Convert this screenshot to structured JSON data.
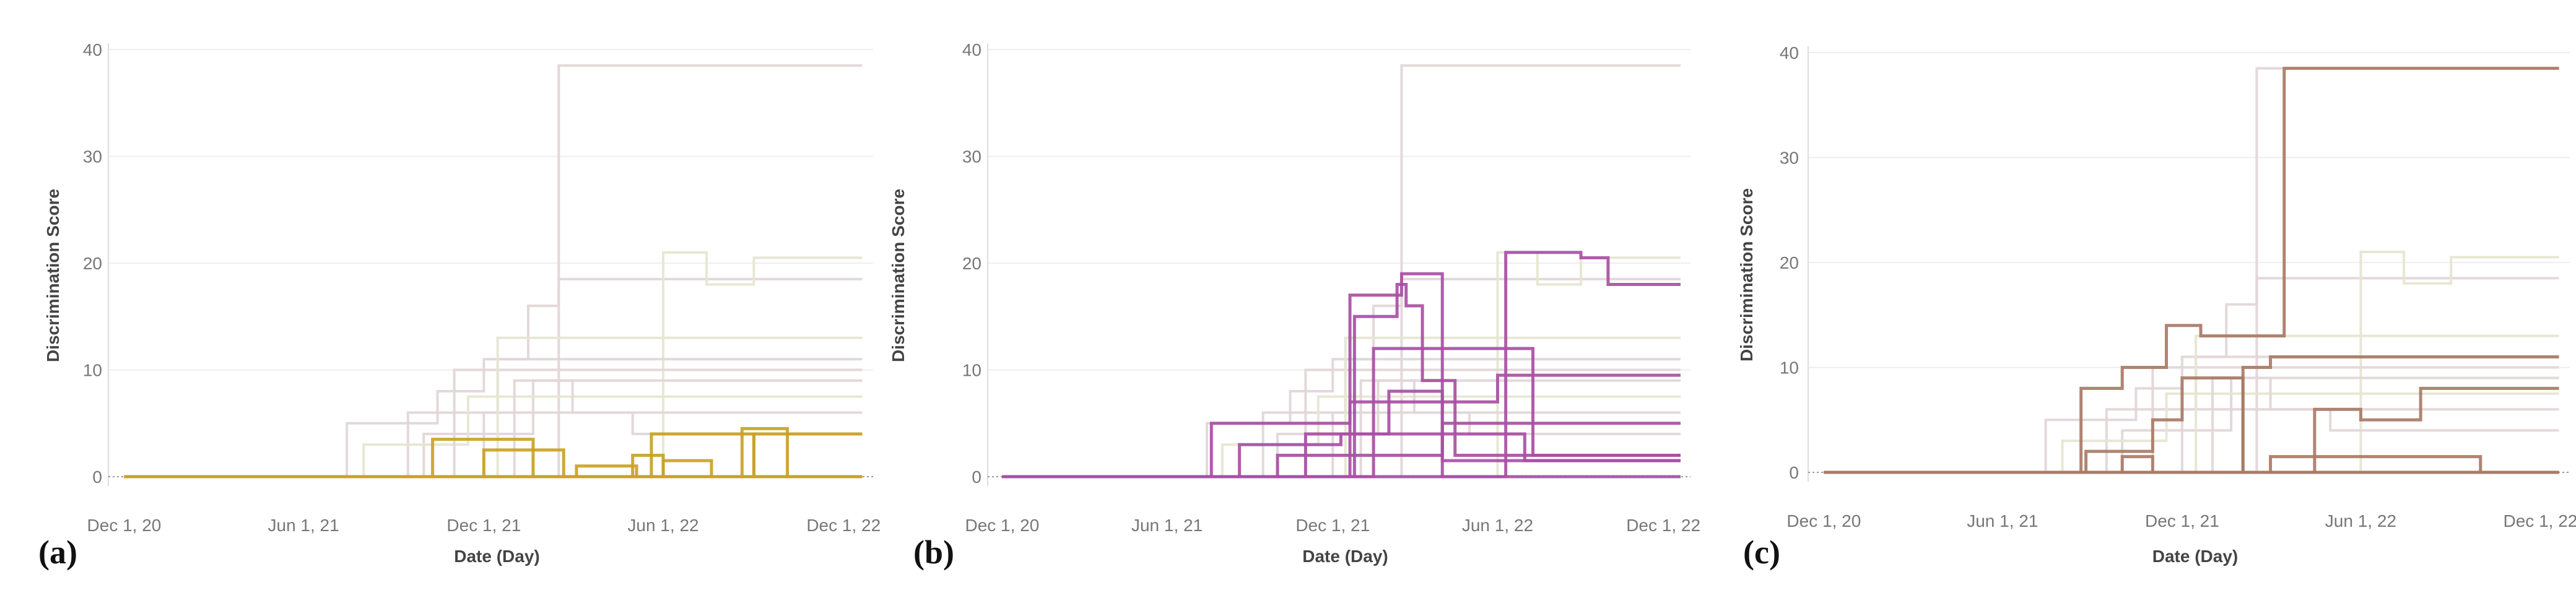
{
  "colors": {
    "muted": "#e2d6d8",
    "muted_alt": "#e6e6d2",
    "highlight_a": "#c9a227",
    "highlight_b": "#a94fa4",
    "highlight_c": "#a87b66"
  },
  "chart_data": [
    {
      "type": "line",
      "step": true,
      "panel_label": "(a)",
      "xlabel": "Date (Day)",
      "ylabel": "Discrimination Score",
      "xlim": [
        "2020-11-15",
        "2022-12-31"
      ],
      "ylim": [
        0,
        40
      ],
      "xticks": [
        "2020-12-01",
        "2021-06-01",
        "2021-12-01",
        "2022-06-01",
        "2022-12-01"
      ],
      "xtick_labels": [
        "Dec 1, 20",
        "Jun 1, 21",
        "Dec 1, 21",
        "Jun 1, 22",
        "Dec 1, 22"
      ],
      "yticks": [
        0,
        10,
        20,
        30,
        40
      ],
      "grid": true,
      "highlight_color": "#c9a227",
      "highlighted_series": [
        {
          "x": [
            "2020-12-01",
            "2021-10-01",
            "2021-10-10",
            "2022-01-20",
            "2022-01-20",
            "2022-12-20"
          ],
          "y": [
            0,
            0,
            3.5,
            3.5,
            0,
            0
          ]
        },
        {
          "x": [
            "2020-12-01",
            "2021-12-01",
            "2021-12-01",
            "2022-02-20",
            "2022-02-20",
            "2022-12-20"
          ],
          "y": [
            0,
            0,
            2.5,
            2.5,
            0,
            0
          ]
        },
        {
          "x": [
            "2020-12-01",
            "2022-01-20",
            "2022-03-05",
            "2022-03-05",
            "2022-05-05",
            "2022-05-05",
            "2022-12-20"
          ],
          "y": [
            0,
            0,
            1,
            1,
            0,
            0,
            0
          ]
        },
        {
          "x": [
            "2020-12-01",
            "2022-05-01",
            "2022-05-01",
            "2022-06-01",
            "2022-06-01",
            "2022-12-20"
          ],
          "y": [
            0,
            0,
            2,
            2,
            0,
            0
          ]
        },
        {
          "x": [
            "2020-12-01",
            "2022-05-20",
            "2022-05-20",
            "2022-09-01",
            "2022-09-01",
            "2022-12-20"
          ],
          "y": [
            0,
            0,
            4,
            4,
            0,
            0
          ]
        },
        {
          "x": [
            "2020-12-01",
            "2022-08-20",
            "2022-08-20",
            "2022-10-05",
            "2022-10-05",
            "2022-12-20"
          ],
          "y": [
            0,
            0,
            4.5,
            4.5,
            0,
            0
          ]
        },
        {
          "x": [
            "2020-12-01",
            "2022-09-01",
            "2022-09-01",
            "2022-12-20"
          ],
          "y": [
            0,
            0,
            4,
            4
          ]
        },
        {
          "x": [
            "2020-12-01",
            "2022-06-01",
            "2022-06-01",
            "2022-07-20",
            "2022-07-20",
            "2022-12-20"
          ],
          "y": [
            0,
            0,
            1.5,
            1.5,
            0,
            0
          ]
        }
      ]
    },
    {
      "type": "line",
      "step": true,
      "panel_label": "(b)",
      "xlabel": "Date (Day)",
      "ylabel": "Discrimination Score",
      "xlim": [
        "2020-11-15",
        "2022-12-31"
      ],
      "ylim": [
        0,
        40
      ],
      "xticks": [
        "2020-12-01",
        "2021-06-01",
        "2021-12-01",
        "2022-06-01",
        "2022-12-01"
      ],
      "xtick_labels": [
        "Dec 1, 20",
        "Jun 1, 21",
        "Dec 1, 21",
        "Jun 1, 22",
        "Dec 1, 22"
      ],
      "yticks": [
        0,
        10,
        20,
        30,
        40
      ],
      "grid": true,
      "highlight_color": "#a94fa4",
      "highlighted_series": [
        {
          "x": [
            "2020-12-01",
            "2021-07-20",
            "2021-07-20",
            "2021-12-20",
            "2021-12-20",
            "2022-06-01",
            "2022-06-01",
            "2022-12-20"
          ],
          "y": [
            0,
            0,
            5,
            5,
            7,
            7,
            9.5,
            9.5
          ]
        },
        {
          "x": [
            "2020-12-01",
            "2021-08-20",
            "2021-08-20",
            "2021-12-10",
            "2021-12-10",
            "2022-02-01",
            "2022-02-01",
            "2022-04-01",
            "2022-04-01",
            "2022-12-20"
          ],
          "y": [
            0,
            0,
            3,
            3,
            4,
            4,
            8,
            8,
            1.5,
            1.5
          ]
        },
        {
          "x": [
            "2020-12-01",
            "2021-12-20",
            "2021-12-20",
            "2022-02-15",
            "2022-02-15",
            "2022-04-01",
            "2022-04-01",
            "2022-12-20"
          ],
          "y": [
            0,
            0,
            17,
            17,
            19,
            19,
            0,
            0
          ]
        },
        {
          "x": [
            "2020-12-01",
            "2021-12-25",
            "2021-12-25",
            "2022-02-10",
            "2022-02-10",
            "2022-02-20",
            "2022-02-20",
            "2022-03-10",
            "2022-03-10",
            "2022-04-15",
            "2022-04-15",
            "2022-12-20"
          ],
          "y": [
            0,
            0,
            15,
            15,
            18,
            18,
            16,
            16,
            9,
            9,
            2,
            2
          ]
        },
        {
          "x": [
            "2020-12-01",
            "2022-06-10",
            "2022-06-10",
            "2022-09-01",
            "2022-09-01",
            "2022-10-01",
            "2022-10-01",
            "2022-12-20"
          ],
          "y": [
            0,
            0,
            21,
            21,
            20.5,
            20.5,
            18,
            18
          ]
        },
        {
          "x": [
            "2020-12-01",
            "2021-10-01",
            "2021-10-01",
            "2022-04-01",
            "2022-04-01",
            "2022-12-20"
          ],
          "y": [
            0,
            0,
            2,
            2,
            5,
            5
          ]
        },
        {
          "x": [
            "2020-12-01",
            "2021-11-01",
            "2021-11-01",
            "2022-07-01",
            "2022-07-01",
            "2022-12-20"
          ],
          "y": [
            0,
            0,
            4,
            4,
            1.5,
            1.5
          ]
        },
        {
          "x": [
            "2020-12-01",
            "2022-01-15",
            "2022-01-15",
            "2022-07-10",
            "2022-07-10",
            "2022-12-20"
          ],
          "y": [
            0,
            0,
            12,
            12,
            2,
            2
          ]
        }
      ]
    },
    {
      "type": "line",
      "step": true,
      "panel_label": "(c)",
      "xlabel": "Date (Day)",
      "ylabel": "Discrimination Score",
      "xlim": [
        "2020-11-15",
        "2022-12-31"
      ],
      "ylim": [
        0,
        40
      ],
      "xticks": [
        "2020-12-01",
        "2021-06-01",
        "2021-12-01",
        "2022-06-01",
        "2022-12-01"
      ],
      "xtick_labels": [
        "Dec 1, 20",
        "Jun 1, 21",
        "Dec 1, 21",
        "Jun 1, 22",
        "Dec 1, 22"
      ],
      "yticks": [
        0,
        10,
        20,
        30,
        40
      ],
      "grid": true,
      "highlight_color": "#a87b66",
      "highlighted_series": [
        {
          "x": [
            "2020-12-01",
            "2021-08-20",
            "2021-08-20",
            "2021-10-01",
            "2021-10-01",
            "2021-11-15",
            "2021-11-15",
            "2021-12-20",
            "2021-12-20",
            "2022-03-15",
            "2022-03-15",
            "2022-12-20"
          ],
          "y": [
            0,
            0,
            8,
            8,
            10,
            10,
            14,
            14,
            13,
            13,
            38.5,
            38.5
          ]
        },
        {
          "x": [
            "2020-12-01",
            "2021-08-25",
            "2021-08-25",
            "2021-11-01",
            "2021-11-01",
            "2021-12-01",
            "2021-12-01",
            "2022-02-01",
            "2022-02-01",
            "2022-12-20"
          ],
          "y": [
            0,
            0,
            2,
            2,
            5,
            5,
            9,
            9,
            0,
            0
          ]
        },
        {
          "x": [
            "2020-12-01",
            "2022-02-01",
            "2022-02-01",
            "2022-03-01",
            "2022-03-01",
            "2022-12-20"
          ],
          "y": [
            0,
            0,
            10,
            10,
            11,
            11
          ]
        },
        {
          "x": [
            "2020-12-01",
            "2022-04-15",
            "2022-04-15",
            "2022-06-01",
            "2022-06-01",
            "2022-08-01",
            "2022-08-01",
            "2022-12-20"
          ],
          "y": [
            0,
            0,
            6,
            6,
            5,
            5,
            8,
            8
          ]
        },
        {
          "x": [
            "2020-12-01",
            "2021-10-01",
            "2021-10-01",
            "2021-11-01",
            "2021-11-01",
            "2022-12-20"
          ],
          "y": [
            0,
            0,
            1.5,
            1.5,
            0,
            0
          ]
        },
        {
          "x": [
            "2020-12-01",
            "2022-03-01",
            "2022-03-01",
            "2022-10-01",
            "2022-10-01",
            "2022-12-20"
          ],
          "y": [
            0,
            0,
            1.5,
            1.5,
            0,
            0
          ]
        }
      ]
    }
  ],
  "background_series": [
    {
      "x": [
        "2020-12-01",
        "2022-02-15",
        "2022-02-15",
        "2022-12-20"
      ],
      "y": [
        0,
        0,
        38.5,
        38.5
      ]
    },
    {
      "x": [
        "2020-12-01",
        "2021-07-15",
        "2021-07-15",
        "2021-10-15",
        "2021-10-15",
        "2021-12-01",
        "2021-12-01",
        "2022-01-15",
        "2022-01-15",
        "2022-02-15",
        "2022-02-15",
        "2022-12-20"
      ],
      "y": [
        0,
        0,
        5,
        5,
        8,
        8,
        11,
        11,
        16,
        16,
        18.5,
        18.5
      ]
    },
    {
      "x": [
        "2020-12-01",
        "2022-06-01",
        "2022-06-01",
        "2022-07-15",
        "2022-07-15",
        "2022-09-01",
        "2022-09-01",
        "2022-12-20"
      ],
      "y": [
        0,
        0,
        21,
        21,
        18,
        18,
        20.5,
        20.5
      ]
    },
    {
      "x": [
        "2020-12-01",
        "2021-09-15",
        "2021-09-15",
        "2021-12-15",
        "2021-12-15",
        "2022-12-20"
      ],
      "y": [
        0,
        0,
        6,
        6,
        11,
        11
      ]
    },
    {
      "x": [
        "2020-12-01",
        "2021-10-01",
        "2021-10-01",
        "2022-01-20",
        "2022-01-20",
        "2022-12-20"
      ],
      "y": [
        0,
        0,
        4,
        4,
        9,
        9
      ]
    },
    {
      "x": [
        "2020-12-01",
        "2021-08-01",
        "2021-08-01",
        "2021-11-15",
        "2021-11-15",
        "2022-12-20"
      ],
      "y": [
        0,
        0,
        3,
        3,
        7.5,
        7.5
      ]
    },
    {
      "x": [
        "2020-12-01",
        "2021-11-01",
        "2021-11-01",
        "2022-12-20"
      ],
      "y": [
        0,
        0,
        10,
        10
      ]
    },
    {
      "x": [
        "2020-12-01",
        "2021-12-01",
        "2021-12-01",
        "2022-05-01",
        "2022-05-01",
        "2022-12-20"
      ],
      "y": [
        0,
        0,
        6,
        6,
        4,
        4
      ]
    },
    {
      "x": [
        "2020-12-01",
        "2021-12-15",
        "2021-12-15",
        "2022-12-20"
      ],
      "y": [
        0,
        0,
        13,
        13
      ]
    },
    {
      "x": [
        "2020-12-01",
        "2022-01-01",
        "2022-01-01",
        "2022-03-01",
        "2022-03-01",
        "2022-12-20"
      ],
      "y": [
        0,
        0,
        9,
        9,
        6,
        6
      ]
    }
  ]
}
